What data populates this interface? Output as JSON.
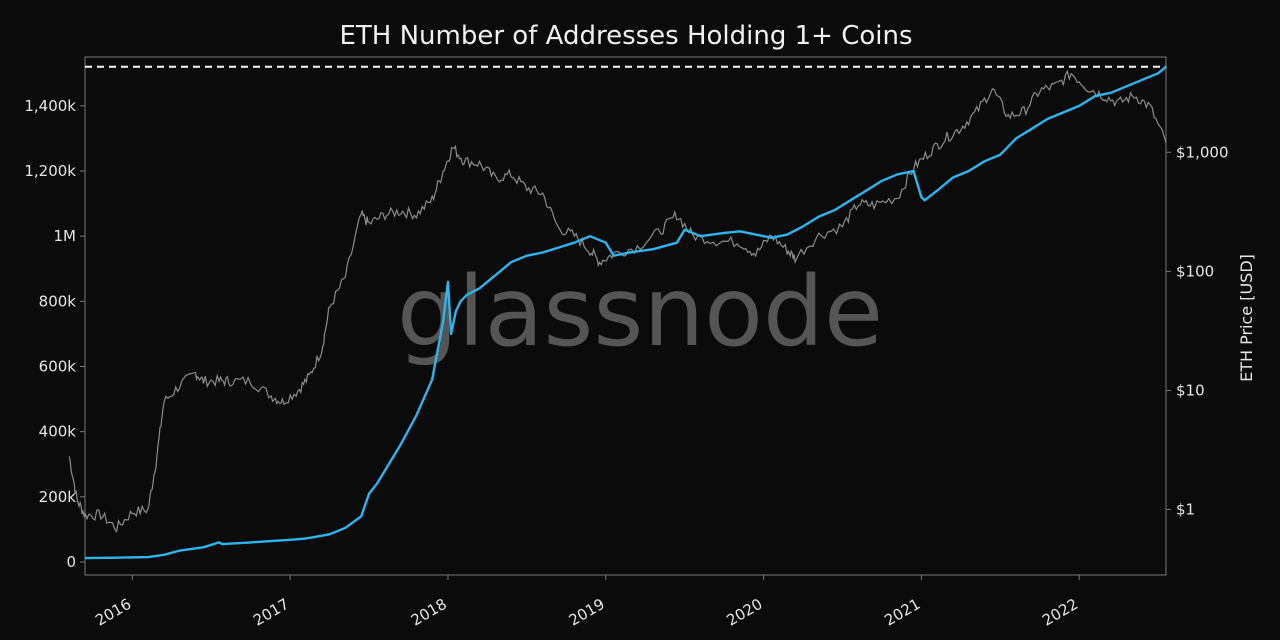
{
  "chart_data": {
    "type": "line",
    "title": "ETH Number of Addresses Holding 1+ Coins",
    "watermark": "glassnode",
    "xlabel": "",
    "ylabel": "",
    "y2label": "ETH Price [USD]",
    "x_range": [
      2015.7,
      2022.55
    ],
    "ylim": [
      -40000,
      1550000
    ],
    "y2lim_log10": [
      -0.55,
      3.8
    ],
    "x_ticks": [
      {
        "value": 2016,
        "label": "2016"
      },
      {
        "value": 2017,
        "label": "2017"
      },
      {
        "value": 2018,
        "label": "2018"
      },
      {
        "value": 2019,
        "label": "2019"
      },
      {
        "value": 2020,
        "label": "2020"
      },
      {
        "value": 2021,
        "label": "2021"
      },
      {
        "value": 2022,
        "label": "2022"
      }
    ],
    "y_ticks": [
      {
        "value": 0,
        "label": "0"
      },
      {
        "value": 200000,
        "label": "200k"
      },
      {
        "value": 400000,
        "label": "400k"
      },
      {
        "value": 600000,
        "label": "600k"
      },
      {
        "value": 800000,
        "label": "800k"
      },
      {
        "value": 1000000,
        "label": "1M"
      },
      {
        "value": 1200000,
        "label": "1,200k"
      },
      {
        "value": 1400000,
        "label": "1,400k"
      }
    ],
    "y2_ticks": [
      {
        "value": 1,
        "label": "$1"
      },
      {
        "value": 10,
        "label": "$10"
      },
      {
        "value": 100,
        "label": "$100"
      },
      {
        "value": 1000,
        "label": "$1,000"
      }
    ],
    "reference_line": {
      "value": 1520000,
      "style": "dashed",
      "color": "#ffffff"
    },
    "series": [
      {
        "name": "Addresses Holding 1+ Coins",
        "axis": "left",
        "color": "#2db6ee",
        "x": [
          2015.7,
          2015.9,
          2016.1,
          2016.2,
          2016.3,
          2016.45,
          2016.55,
          2016.57,
          2016.75,
          2016.9,
          2017.0,
          2017.1,
          2017.25,
          2017.35,
          2017.45,
          2017.5,
          2017.55,
          2017.6,
          2017.7,
          2017.8,
          2017.9,
          2017.97,
          2018.0,
          2018.02,
          2018.05,
          2018.08,
          2018.12,
          2018.2,
          2018.3,
          2018.4,
          2018.5,
          2018.6,
          2018.7,
          2018.8,
          2018.9,
          2019.0,
          2019.05,
          2019.15,
          2019.3,
          2019.45,
          2019.5,
          2019.6,
          2019.75,
          2019.85,
          2019.95,
          2020.0,
          2020.05,
          2020.15,
          2020.25,
          2020.35,
          2020.45,
          2020.55,
          2020.65,
          2020.75,
          2020.85,
          2020.95,
          2021.0,
          2021.02,
          2021.1,
          2021.2,
          2021.3,
          2021.4,
          2021.5,
          2021.6,
          2021.7,
          2021.8,
          2021.9,
          2022.0,
          2022.1,
          2022.2,
          2022.3,
          2022.4,
          2022.5,
          2022.55
        ],
        "values": [
          12000,
          13000,
          15000,
          22000,
          35000,
          45000,
          60000,
          55000,
          60000,
          65000,
          68000,
          72000,
          85000,
          105000,
          140000,
          210000,
          240000,
          280000,
          360000,
          450000,
          560000,
          740000,
          860000,
          700000,
          770000,
          800000,
          820000,
          840000,
          880000,
          920000,
          940000,
          950000,
          965000,
          980000,
          1000000,
          980000,
          940000,
          950000,
          960000,
          980000,
          1020000,
          1000000,
          1010000,
          1015000,
          1005000,
          1000000,
          995000,
          1005000,
          1030000,
          1060000,
          1080000,
          1110000,
          1140000,
          1170000,
          1190000,
          1200000,
          1120000,
          1110000,
          1140000,
          1180000,
          1200000,
          1230000,
          1250000,
          1300000,
          1330000,
          1360000,
          1380000,
          1400000,
          1430000,
          1440000,
          1460000,
          1480000,
          1500000,
          1520000
        ]
      },
      {
        "name": "ETH Price [USD]",
        "axis": "right",
        "scale": "log",
        "color": "#8c8c8c",
        "x": [
          2015.6,
          2015.65,
          2015.7,
          2015.8,
          2015.9,
          2016.0,
          2016.1,
          2016.15,
          2016.2,
          2016.3,
          2016.4,
          2016.45,
          2016.55,
          2016.62,
          2016.75,
          2016.88,
          2016.95,
          2017.05,
          2017.12,
          2017.2,
          2017.25,
          2017.35,
          2017.45,
          2017.5,
          2017.6,
          2017.7,
          2017.8,
          2017.9,
          2017.97,
          2018.03,
          2018.1,
          2018.2,
          2018.3,
          2018.4,
          2018.5,
          2018.6,
          2018.7,
          2018.8,
          2018.9,
          2018.96,
          2019.05,
          2019.2,
          2019.35,
          2019.45,
          2019.55,
          2019.7,
          2019.85,
          2019.95,
          2020.05,
          2020.15,
          2020.2,
          2020.35,
          2020.5,
          2020.6,
          2020.7,
          2020.85,
          2020.95,
          2021.05,
          2021.15,
          2021.25,
          2021.35,
          2021.45,
          2021.55,
          2021.65,
          2021.75,
          2021.85,
          2021.95,
          2022.05,
          2022.15,
          2022.25,
          2022.35,
          2022.45,
          2022.55
        ],
        "values": [
          2.8,
          1.2,
          0.9,
          0.9,
          0.7,
          0.95,
          1.0,
          2.5,
          8,
          11,
          14,
          12,
          12,
          12,
          12,
          9,
          8,
          10,
          13,
          22,
          50,
          90,
          300,
          250,
          300,
          320,
          300,
          400,
          700,
          1100,
          850,
          800,
          600,
          650,
          500,
          450,
          230,
          200,
          150,
          120,
          140,
          160,
          220,
          300,
          200,
          180,
          175,
          140,
          200,
          150,
          130,
          200,
          240,
          370,
          360,
          420,
          740,
          1000,
          1300,
          1600,
          2200,
          3400,
          2000,
          2200,
          3300,
          3600,
          4600,
          3500,
          3000,
          2600,
          3000,
          2400,
          1200
        ]
      }
    ]
  }
}
